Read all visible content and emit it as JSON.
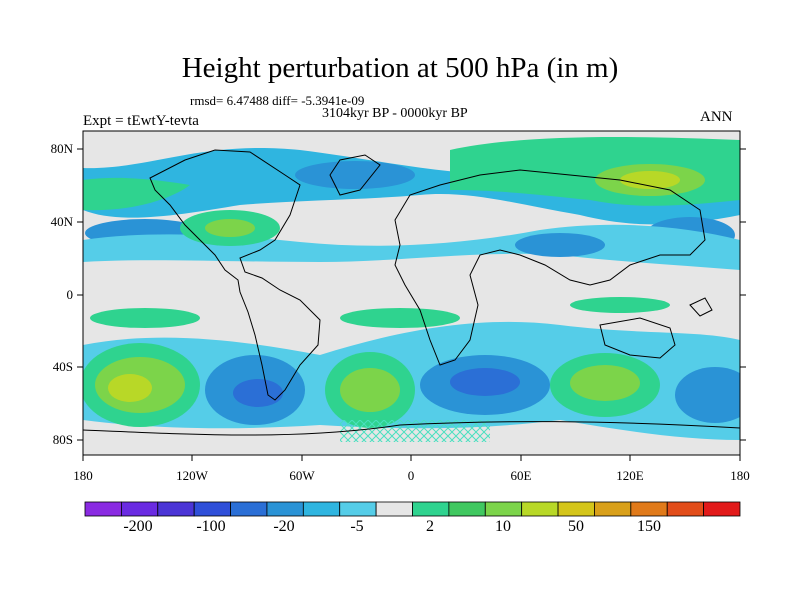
{
  "title": "Height perturbation at 500 hPa (in m)",
  "stats": "rmsd= 6.47488 diff= -5.3941e-09",
  "period": "3104kyr BP - 0000kyr BP",
  "experiment": "Expt = tEwtY-tevta",
  "season": "ANN",
  "lat_labels": [
    "80N",
    "40N",
    "0",
    "40S",
    "80S"
  ],
  "lon_labels": [
    "180",
    "120W",
    "60W",
    "0",
    "60E",
    "120E",
    "180"
  ],
  "colorbar": {
    "colors": [
      "#8a2be2",
      "#6a2be2",
      "#4b35d6",
      "#2f4fd9",
      "#2b6fd6",
      "#2a93d6",
      "#2fb5e0",
      "#55cde8",
      "#e6e6e6",
      "#2fd38f",
      "#40c860",
      "#7cd44a",
      "#b8d827",
      "#d4c51a",
      "#d9a01a",
      "#e07a1a",
      "#e24d1a",
      "#e21a1a"
    ],
    "labels": [
      "-200",
      "-100",
      "-20",
      "-5",
      "2",
      "10",
      "50",
      "150"
    ]
  }
}
